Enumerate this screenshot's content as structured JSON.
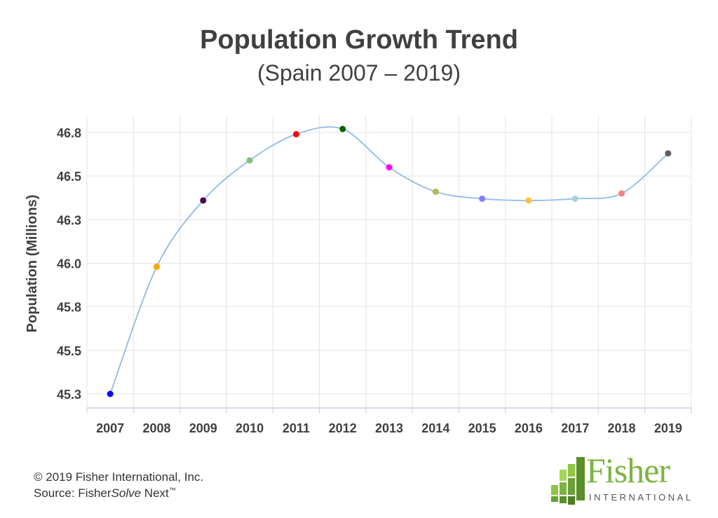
{
  "header": {
    "title": "Population Growth Trend",
    "subtitle": "(Spain 2007 – 2019)"
  },
  "chart_data": {
    "type": "line",
    "title": "Population Growth Trend",
    "subtitle": "(Spain 2007 – 2019)",
    "xlabel": "",
    "ylabel": "Population (Millions)",
    "categories": [
      "2007",
      "2008",
      "2009",
      "2010",
      "2011",
      "2012",
      "2013",
      "2014",
      "2015",
      "2016",
      "2017",
      "2018",
      "2019"
    ],
    "values": [
      45.25,
      45.98,
      46.36,
      46.59,
      46.74,
      46.77,
      46.55,
      46.41,
      46.37,
      46.36,
      46.37,
      46.4,
      46.63
    ],
    "point_colors": [
      "#0000ff",
      "#ffa500",
      "#4b0050",
      "#80bf80",
      "#ff0000",
      "#006400",
      "#ff00ff",
      "#b8b856",
      "#7f7fff",
      "#ffc040",
      "#a8d0e6",
      "#ff7f7f",
      "#606060"
    ],
    "line_color": "#8fbbe8",
    "y_ticks": [
      "45.3",
      "45.5",
      "45.8",
      "46.0",
      "46.3",
      "46.5",
      "46.8"
    ],
    "ylim": [
      45.25,
      46.75
    ],
    "grid": true,
    "legend": "none"
  },
  "footer": {
    "copyright": "© 2019 Fisher International, Inc.",
    "source_prefix": "Source: Fisher",
    "source_italic": "Solve",
    "source_suffix": " Next",
    "trademark": "™"
  },
  "logo": {
    "word": "Fisher",
    "sub": "INTERNATIONAL",
    "color": "#7cb342"
  }
}
